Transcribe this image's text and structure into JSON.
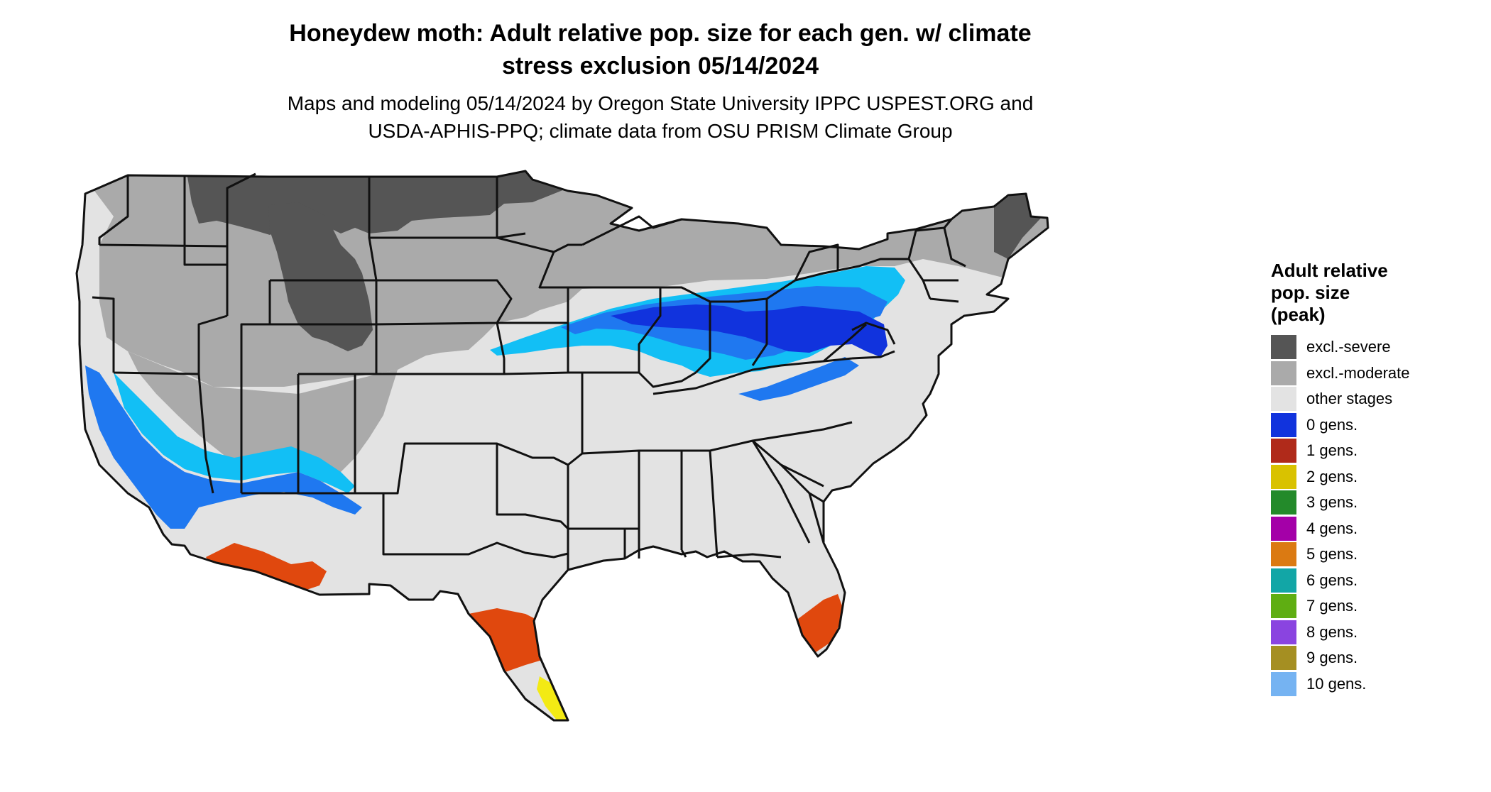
{
  "header": {
    "title_line1": "Honeydew moth: Adult relative pop. size for each gen. w/ climate",
    "title_line2": "stress exclusion 05/14/2024",
    "subtitle_line1": "Maps and modeling 05/14/2024 by Oregon State University IPPC USPEST.ORG and",
    "subtitle_line2": "USDA-APHIS-PPQ; climate data from OSU PRISM Climate Group"
  },
  "legend": {
    "title_line1": "Adult relative",
    "title_line2": "pop. size",
    "title_line3": "(peak)",
    "items": [
      {
        "label": "excl.-severe",
        "color": "#555555"
      },
      {
        "label": "excl.-moderate",
        "color": "#aaaaaa"
      },
      {
        "label": "other stages",
        "color": "#e3e3e3"
      },
      {
        "label": "0 gens.",
        "color": "#1133dd"
      },
      {
        "label": "1 gens.",
        "color": "#b02a1a"
      },
      {
        "label": "2 gens.",
        "color": "#d9c200"
      },
      {
        "label": "3 gens.",
        "color": "#238a2a"
      },
      {
        "label": "4 gens.",
        "color": "#a400a8"
      },
      {
        "label": "5 gens.",
        "color": "#db7a12"
      },
      {
        "label": "6 gens.",
        "color": "#12a6a6"
      },
      {
        "label": "7 gens.",
        "color": "#5fae12"
      },
      {
        "label": "8 gens.",
        "color": "#8a44e0"
      },
      {
        "label": "9 gens.",
        "color": "#a58f22"
      },
      {
        "label": "10 gens.",
        "color": "#75b3f2"
      }
    ]
  },
  "map_colors": {
    "land_other": "#e3e3e3",
    "excl_moderate": "#aaaaaa",
    "excl_severe": "#555555",
    "band_light": "#12bff5",
    "band_mid": "#1f78f0",
    "band_dark": "#1133dd",
    "orange": "#e0480e",
    "orange_dark": "#b53a10",
    "yellow": "#f3ea14",
    "border": "#111111"
  }
}
